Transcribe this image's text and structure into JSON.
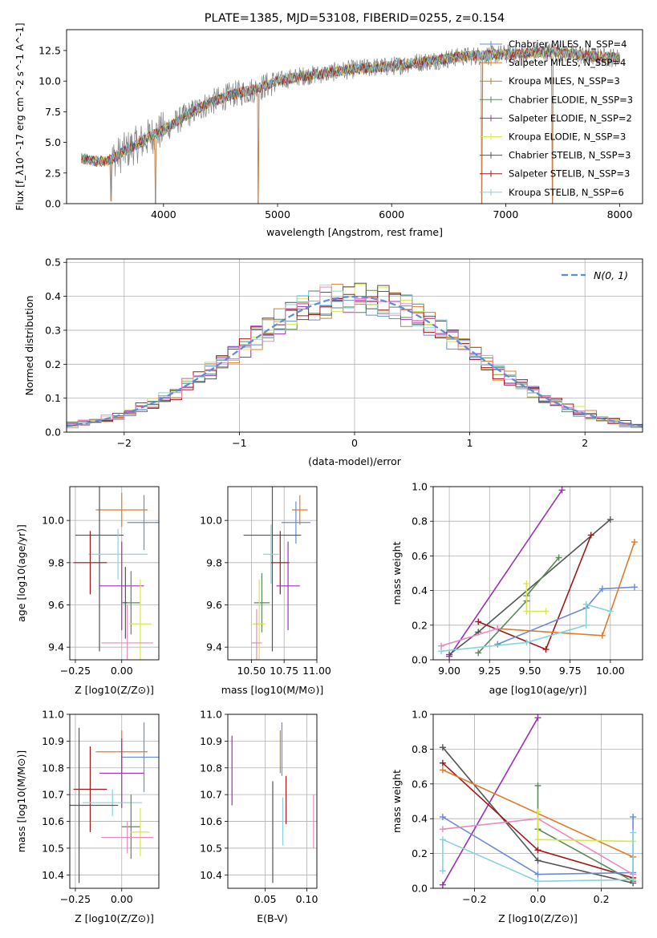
{
  "chart_data": [
    {
      "id": "spectrum",
      "type": "line",
      "title": "PLATE=1385, MJD=53108, FIBERID=0255, z=0.154",
      "xlabel": "wavelength [Angstrom, rest frame]",
      "ylabel": "Flux [f_λ10^-17 erg cm^-2 s^-1 A^-1]",
      "xlim": [
        3150,
        8200
      ],
      "ylim": [
        0,
        14.2
      ],
      "xticks": [
        4000,
        5000,
        6000,
        7000,
        8000
      ],
      "xtick_labels": [
        "4000",
        "5000",
        "6000",
        "7000",
        "8000"
      ],
      "yticks": [
        0,
        2.5,
        5,
        7.5,
        10,
        12.5
      ],
      "ytick_labels": [
        "0.0",
        "2.5",
        "5.0",
        "7.5",
        "10.0",
        "12.5"
      ],
      "grid": false,
      "legend_position": "right",
      "continuum": {
        "x": [
          3280,
          3400,
          3500,
          3600,
          3700,
          3800,
          3900,
          4000,
          4200,
          4400,
          4600,
          4800,
          5000,
          5200,
          5400,
          5600,
          5800,
          6000,
          6200,
          6400,
          6600,
          6800,
          7000,
          7200,
          7400,
          7600,
          7800,
          8000
        ],
        "y": [
          3.7,
          3.5,
          3.4,
          3.9,
          4.5,
          5.0,
          5.6,
          6.0,
          7.2,
          8.2,
          8.9,
          9.3,
          10.0,
          10.4,
          10.6,
          10.9,
          11.1,
          11.2,
          11.5,
          11.7,
          12.0,
          12.1,
          12.2,
          12.3,
          12.4,
          12.2,
          12.0,
          11.9
        ]
      },
      "dips": [
        {
          "x": 3540,
          "y": 0.2
        },
        {
          "x": 3930,
          "y": 0.0
        },
        {
          "x": 4830,
          "y": 0.0
        },
        {
          "x": 6790,
          "y": 0.0
        },
        {
          "x": 7410,
          "y": 0.0
        }
      ],
      "series": [
        {
          "name": "Chabrier MILES, N_SSP=4",
          "color": "#6a8bd6"
        },
        {
          "name": "Salpeter MILES, N_SSP=4",
          "color": "#e07b2a"
        },
        {
          "name": "Kroupa MILES, N_SSP=3",
          "color": "#b08a2a"
        },
        {
          "name": "Chabrier ELODIE, N_SSP=3",
          "color": "#5a8a5a"
        },
        {
          "name": "Salpeter ELODIE, N_SSP=2",
          "color": "#9b30b0"
        },
        {
          "name": "Kroupa ELODIE, N_SSP=3",
          "color": "#d8e650"
        },
        {
          "name": "Chabrier STELIB, N_SSP=3",
          "color": "#555555"
        },
        {
          "name": "Salpeter STELIB, N_SSP=3",
          "color": "#a01818"
        },
        {
          "name": "Kroupa STELIB, N_SSP=6",
          "color": "#86d3e0"
        }
      ],
      "data_color": "#7f7f7f"
    },
    {
      "id": "residuals",
      "type": "area",
      "xlabel": "(data-model)/error",
      "ylabel": "Normed distribution",
      "xlim": [
        -2.5,
        2.5
      ],
      "ylim": [
        0,
        0.51
      ],
      "xticks": [
        -2,
        -1,
        0,
        1,
        2
      ],
      "xtick_labels": [
        "−2",
        "−1",
        "0",
        "1",
        "2"
      ],
      "yticks": [
        0,
        0.1,
        0.2,
        0.3,
        0.4,
        0.5
      ],
      "ytick_labels": [
        "0.0",
        "0.1",
        "0.2",
        "0.3",
        "0.4",
        "0.5"
      ],
      "grid": true,
      "legend": "N(0, 1)",
      "legend_position": "top-right",
      "gaussian_color": "#5b8dd6",
      "bin_width": 0.1,
      "histogram_colors": [
        "#6a8bd6",
        "#e07b2a",
        "#5a8a5a",
        "#9b30b0",
        "#d8e650",
        "#555555",
        "#a01818",
        "#86d3e0",
        "#e88bbf"
      ]
    },
    {
      "id": "age-vs-Z",
      "type": "scatter",
      "xlabel": "Z [log10(Z/Z⊙)]",
      "ylabel": "age  [log10(age/yr)]",
      "xlim": [
        -0.28,
        0.2
      ],
      "ylim": [
        9.34,
        10.16
      ],
      "xticks": [
        -0.25,
        0.0
      ],
      "xtick_labels": [
        "−0.25",
        "0.00"
      ],
      "yticks": [
        9.4,
        9.6,
        9.8,
        10.0
      ],
      "ytick_labels": [
        "9.4",
        "9.6",
        "9.8",
        "10.0"
      ],
      "grid": true,
      "points": [
        {
          "x": 0.0,
          "y": 10.05,
          "xerr": 0.14,
          "yerr": 0.08,
          "color": "#e07b2a"
        },
        {
          "x": 0.12,
          "y": 9.99,
          "xerr": 0.09,
          "yerr": 0.13,
          "color": "#6a8bd6"
        },
        {
          "x": -0.12,
          "y": 9.93,
          "xerr": 0.13,
          "yerr": 0.55,
          "color": "#555555"
        },
        {
          "x": -0.02,
          "y": 9.84,
          "xerr": 0.16,
          "yerr": 0.12,
          "color": "#86d3e0"
        },
        {
          "x": -0.17,
          "y": 9.8,
          "xerr": 0.09,
          "yerr": 0.15,
          "color": "#a01818"
        },
        {
          "x": 0.0,
          "y": 9.69,
          "xerr": 0.12,
          "yerr": 0.21,
          "color": "#9b30b0"
        },
        {
          "x": 0.05,
          "y": 9.61,
          "xerr": 0.05,
          "yerr": 0.15,
          "color": "#5a8a5a"
        },
        {
          "x": 0.02,
          "y": 9.61,
          "xerr": 0.01,
          "yerr": 0.17,
          "color": "#555555"
        },
        {
          "x": 0.1,
          "y": 9.51,
          "xerr": 0.06,
          "yerr": 0.21,
          "color": "#d8e650"
        },
        {
          "x": 0.03,
          "y": 9.42,
          "xerr": 0.14,
          "yerr": 0.18,
          "color": "#e88bbf"
        }
      ]
    },
    {
      "id": "age-vs-mass",
      "type": "scatter",
      "xlabel": "mass [log10(M/M⊙)]",
      "ylabel": "",
      "xlim": [
        10.32,
        11.0
      ],
      "ylim": [
        9.34,
        10.16
      ],
      "xticks": [
        10.5,
        10.75,
        11.0
      ],
      "xtick_labels": [
        "10.50",
        "10.75",
        "11.00"
      ],
      "yticks": [
        9.4,
        9.6,
        9.8,
        10.0
      ],
      "ytick_labels": [
        "9.4",
        "9.6",
        "9.8",
        "10.0"
      ],
      "grid": true,
      "points": [
        {
          "x": 10.87,
          "y": 10.05,
          "xerr": 0.06,
          "yerr": 0.07,
          "color": "#e07b2a"
        },
        {
          "x": 10.84,
          "y": 9.99,
          "xerr": 0.11,
          "yerr": 0.1,
          "color": "#6a8bd6"
        },
        {
          "x": 10.66,
          "y": 9.93,
          "xerr": 0.22,
          "yerr": 0.55,
          "color": "#555555"
        },
        {
          "x": 10.65,
          "y": 9.84,
          "xerr": 0.06,
          "yerr": 0.14,
          "color": "#86d3e0"
        },
        {
          "x": 10.72,
          "y": 9.8,
          "xerr": 0.07,
          "yerr": 0.15,
          "color": "#a01818"
        },
        {
          "x": 10.78,
          "y": 9.69,
          "xerr": 0.09,
          "yerr": 0.21,
          "color": "#9b30b0"
        },
        {
          "x": 10.58,
          "y": 9.61,
          "xerr": 0.06,
          "yerr": 0.14,
          "color": "#5a8a5a"
        },
        {
          "x": 10.56,
          "y": 9.51,
          "xerr": 0.05,
          "yerr": 0.21,
          "color": "#d8e650"
        },
        {
          "x": 10.54,
          "y": 9.42,
          "xerr": 0.04,
          "yerr": 0.16,
          "color": "#e88bbf"
        }
      ]
    },
    {
      "id": "massweight-vs-age",
      "type": "line",
      "xlabel": "age  [log10(age/yr)]",
      "ylabel": "mass weight",
      "xlim": [
        8.9,
        10.2
      ],
      "ylim": [
        0,
        1.0
      ],
      "xticks": [
        9.0,
        9.25,
        9.5,
        9.75,
        10.0
      ],
      "xtick_labels": [
        "9.00",
        "9.25",
        "9.50",
        "9.75",
        "10.00"
      ],
      "yticks": [
        0,
        0.2,
        0.4,
        0.6,
        0.8,
        1.0
      ],
      "ytick_labels": [
        "0.0",
        "0.2",
        "0.4",
        "0.6",
        "0.8",
        "1.0"
      ],
      "grid": true,
      "series": [
        {
          "color": "#9b30b0",
          "x": [
            9.0,
            9.7
          ],
          "y": [
            0.02,
            0.98
          ]
        },
        {
          "color": "#555555",
          "x": [
            9.0,
            9.18,
            10.0
          ],
          "y": [
            0.03,
            0.16,
            0.81
          ]
        },
        {
          "color": "#a01818",
          "x": [
            9.18,
            9.6,
            9.88
          ],
          "y": [
            0.22,
            0.06,
            0.72
          ]
        },
        {
          "color": "#e07b2a",
          "x": [
            9.3,
            9.95,
            10.15
          ],
          "y": [
            0.18,
            0.14,
            0.68
          ]
        },
        {
          "color": "#5a8a5a",
          "x": [
            9.18,
            9.48,
            9.48,
            9.68
          ],
          "y": [
            0.04,
            0.34,
            0.37,
            0.59
          ]
        },
        {
          "color": "#6a8bd6",
          "x": [
            9.3,
            9.85,
            9.95,
            10.15
          ],
          "y": [
            0.09,
            0.3,
            0.41,
            0.42
          ]
        },
        {
          "color": "#86d3e0",
          "x": [
            8.95,
            9.48,
            9.85,
            9.85,
            10.0
          ],
          "y": [
            0.05,
            0.1,
            0.2,
            0.32,
            0.28
          ]
        },
        {
          "color": "#d8e650",
          "x": [
            9.48,
            9.48,
            9.6
          ],
          "y": [
            0.44,
            0.28,
            0.28
          ]
        },
        {
          "color": "#e88bbf",
          "x": [
            8.95,
            9.3
          ],
          "y": [
            0.08,
            0.18
          ]
        }
      ]
    },
    {
      "id": "mass-vs-Z",
      "type": "scatter",
      "xlabel": "Z [log10(Z/Z⊙)]",
      "ylabel": "mass [log10(M/M⊙)]",
      "xlim": [
        -0.28,
        0.2
      ],
      "ylim": [
        10.35,
        11.0
      ],
      "xticks": [
        -0.25,
        0.0
      ],
      "xtick_labels": [
        "−0.25",
        "0.00"
      ],
      "yticks": [
        10.4,
        10.5,
        10.6,
        10.7,
        10.8,
        10.9,
        11.0
      ],
      "ytick_labels": [
        "10.4",
        "10.5",
        "10.6",
        "10.7",
        "10.8",
        "10.9",
        "11.0"
      ],
      "grid": true,
      "points": [
        {
          "x": 0.0,
          "y": 10.86,
          "xerr": 0.14,
          "yerr": 0.08,
          "color": "#e07b2a"
        },
        {
          "x": 0.12,
          "y": 10.84,
          "xerr": 0.12,
          "yerr": 0.13,
          "color": "#6a8bd6"
        },
        {
          "x": 0.0,
          "y": 10.78,
          "xerr": 0.12,
          "yerr": 0.13,
          "color": "#9b30b0"
        },
        {
          "x": -0.17,
          "y": 10.72,
          "xerr": 0.09,
          "yerr": 0.16,
          "color": "#a01818"
        },
        {
          "x": -0.05,
          "y": 10.67,
          "xerr": 0.16,
          "yerr": 0.05,
          "color": "#86d3e0"
        },
        {
          "x": -0.23,
          "y": 10.66,
          "xerr": 0.21,
          "yerr": 0.29,
          "color": "#555555"
        },
        {
          "x": 0.05,
          "y": 10.58,
          "xerr": 0.05,
          "yerr": 0.12,
          "color": "#5a8a5a"
        },
        {
          "x": 0.1,
          "y": 10.56,
          "xerr": 0.05,
          "yerr": 0.09,
          "color": "#d8e650"
        },
        {
          "x": 0.03,
          "y": 10.54,
          "xerr": 0.14,
          "yerr": 0.06,
          "color": "#e88bbf"
        }
      ]
    },
    {
      "id": "mass-vs-ebv",
      "type": "scatter",
      "xlabel": "E(B-V)",
      "ylabel": "",
      "xlim": [
        0.005,
        0.112
      ],
      "ylim": [
        10.35,
        11.0
      ],
      "xticks": [
        0.05,
        0.1
      ],
      "xtick_labels": [
        "0.05",
        "0.10"
      ],
      "yticks": [
        10.4,
        10.5,
        10.6,
        10.7,
        10.8,
        10.9,
        11.0
      ],
      "ytick_labels": [
        "10.4",
        "10.5",
        "10.6",
        "10.7",
        "10.8",
        "10.9",
        "11.0"
      ],
      "grid": true,
      "points": [
        {
          "x": 0.01,
          "y": 10.79,
          "xerr": 0,
          "yerr": 0.13,
          "color": "#9b30b0"
        },
        {
          "x": 0.068,
          "y": 10.86,
          "xerr": 0,
          "yerr": 0.08,
          "color": "#e07b2a"
        },
        {
          "x": 0.07,
          "y": 10.87,
          "xerr": 0,
          "yerr": 0.1,
          "color": "#6a8bd6"
        },
        {
          "x": 0.059,
          "y": 10.56,
          "xerr": 0,
          "yerr": 0.19,
          "color": "#555555"
        },
        {
          "x": 0.071,
          "y": 10.6,
          "xerr": 0,
          "yerr": 0.09,
          "color": "#86d3e0"
        },
        {
          "x": 0.075,
          "y": 10.68,
          "xerr": 0,
          "yerr": 0.09,
          "color": "#a01818"
        },
        {
          "x": 0.108,
          "y": 10.6,
          "xerr": 0,
          "yerr": 0.1,
          "color": "#e88bbf"
        }
      ]
    },
    {
      "id": "massweight-vs-Z",
      "type": "line",
      "xlabel": "Z [log10(Z/Z⊙)]",
      "ylabel": "mass weight",
      "xlim": [
        -0.33,
        0.33
      ],
      "ylim": [
        0,
        1.0
      ],
      "xticks": [
        -0.2,
        0.0,
        0.2
      ],
      "xtick_labels": [
        "−0.2",
        "0.0",
        "0.2"
      ],
      "yticks": [
        0,
        0.2,
        0.4,
        0.6,
        0.8,
        1.0
      ],
      "ytick_labels": [
        "0.0",
        "0.2",
        "0.4",
        "0.6",
        "0.8",
        "1.0"
      ],
      "grid": true,
      "series": [
        {
          "color": "#9b30b0",
          "x": [
            -0.3,
            0.0
          ],
          "y": [
            0.02,
            0.98
          ]
        },
        {
          "color": "#555555",
          "x": [
            -0.3,
            0.0,
            0.3
          ],
          "y": [
            0.81,
            0.16,
            0.03
          ]
        },
        {
          "color": "#a01818",
          "x": [
            -0.3,
            0.0,
            0.3
          ],
          "y": [
            0.72,
            0.22,
            0.06
          ]
        },
        {
          "color": "#e07b2a",
          "x": [
            -0.3,
            0.3
          ],
          "y": [
            0.68,
            0.18
          ]
        },
        {
          "color": "#5a8a5a",
          "x": [
            0.0,
            0.0,
            0.3
          ],
          "y": [
            0.59,
            0.34,
            0.04
          ]
        },
        {
          "color": "#6a8bd6",
          "x": [
            -0.3,
            0.0,
            0.3,
            0.3
          ],
          "y": [
            0.41,
            0.08,
            0.09,
            0.41
          ]
        },
        {
          "color": "#e88bbf",
          "x": [
            -0.3,
            0.0,
            0.3
          ],
          "y": [
            0.34,
            0.4,
            0.08
          ]
        },
        {
          "color": "#d8e650",
          "x": [
            0.0,
            0.0,
            0.3
          ],
          "y": [
            0.44,
            0.28,
            0.27
          ]
        },
        {
          "color": "#86d3e0",
          "x": [
            -0.3,
            -0.3,
            0.0,
            0.3,
            0.3
          ],
          "y": [
            0.1,
            0.28,
            0.04,
            0.05,
            0.32
          ]
        }
      ]
    }
  ]
}
